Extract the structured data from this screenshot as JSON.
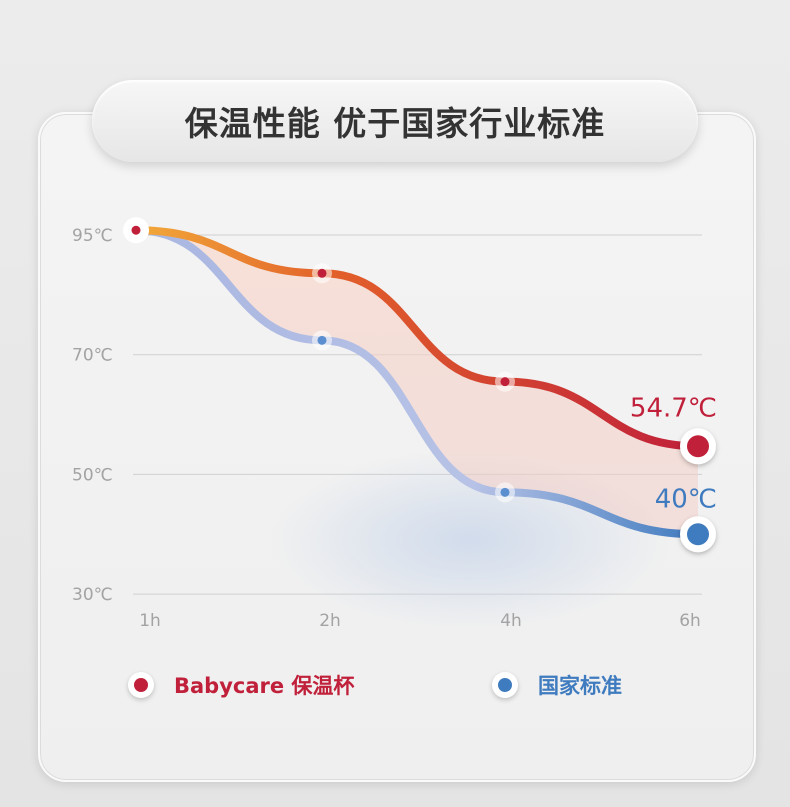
{
  "title": "保温性能 优于国家行业标准",
  "chart_data": {
    "type": "line",
    "title": "",
    "categories": [
      "1h",
      "2h",
      "4h",
      "6h"
    ],
    "y_ticks": [
      "95℃",
      "70℃",
      "50℃",
      "30℃"
    ],
    "y_tick_values": [
      95,
      70,
      50,
      30
    ],
    "grid": true,
    "legend": "bottom",
    "series": [
      {
        "name": "Babycare 保温杯",
        "values": [
          96,
          87,
          65.5,
          54.7
        ],
        "color": "#c0203a",
        "end_label": "54.7℃"
      },
      {
        "name": "国家标准",
        "values": [
          96,
          73,
          47,
          40
        ],
        "color": "#3f7bbf",
        "end_label": "40℃"
      }
    ]
  }
}
